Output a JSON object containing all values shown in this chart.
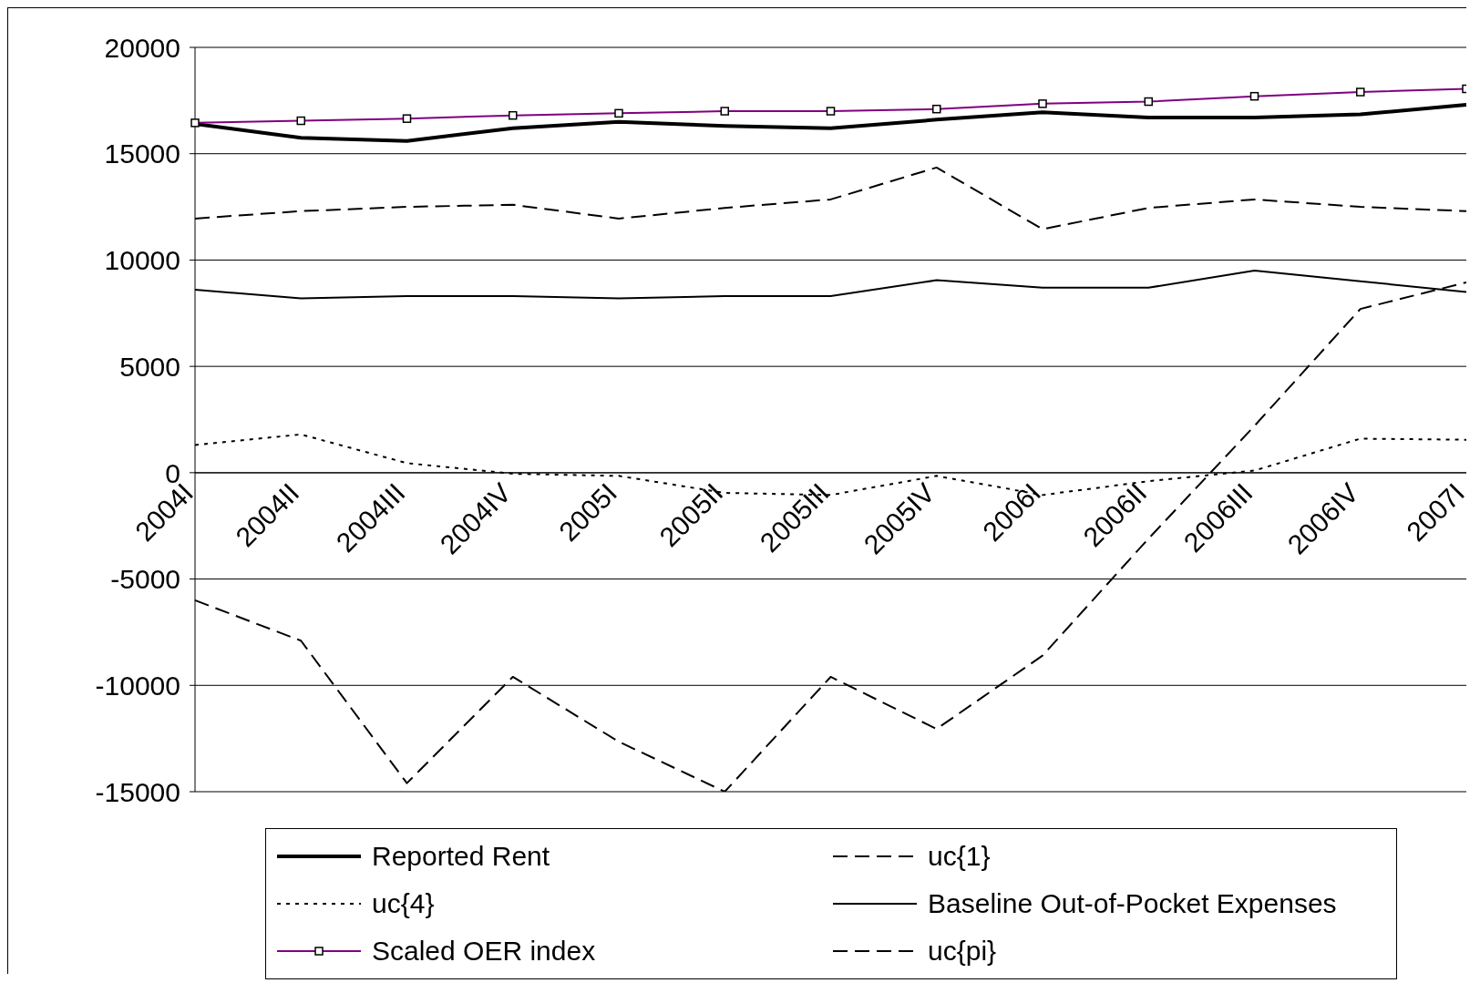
{
  "chart_data": {
    "type": "line",
    "categories": [
      "2004I",
      "2004II",
      "2004III",
      "2004IV",
      "2005I",
      "2005II",
      "2005III",
      "2005IV",
      "2006I",
      "2006II",
      "2006III",
      "2006IV",
      "2007I"
    ],
    "series": [
      {
        "name": "Reported Rent",
        "color": "#000000",
        "line_style": "solid",
        "marker": "none",
        "values": [
          16400,
          15750,
          15600,
          16200,
          16500,
          16300,
          16200,
          16600,
          16950,
          16700,
          16700,
          16850,
          17300
        ]
      },
      {
        "name": "uc{1}",
        "color": "#000000",
        "line_style": "dashed",
        "marker": "none",
        "values": [
          -6000,
          -7900,
          -14600,
          -9600,
          -12650,
          -15000,
          -9600,
          -12050,
          -8600,
          -3100,
          2200,
          7700,
          8950
        ]
      },
      {
        "name": "uc{4}",
        "color": "#000000",
        "line_style": "dotted",
        "marker": "none",
        "values": [
          1300,
          1800,
          450,
          -50,
          -150,
          -950,
          -1050,
          -150,
          -1050,
          -400,
          100,
          1600,
          1550
        ]
      },
      {
        "name": "Baseline Out-of-Pocket Expenses",
        "color": "#000000",
        "line_style": "solid",
        "marker": "none",
        "values": [
          8600,
          8200,
          8300,
          8300,
          8200,
          8300,
          8300,
          9050,
          8700,
          8700,
          9500,
          9000,
          8500
        ]
      },
      {
        "name": "Scaled OER index",
        "color": "#800080",
        "line_style": "solid",
        "marker": "square",
        "values": [
          16450,
          16550,
          16650,
          16800,
          16900,
          17000,
          17000,
          17100,
          17350,
          17450,
          17700,
          17900,
          18050
        ]
      },
      {
        "name": "uc{pi}",
        "color": "#000000",
        "line_style": "dashed",
        "marker": "none",
        "values": [
          11950,
          12300,
          12500,
          12600,
          11950,
          12450,
          12850,
          14350,
          11450,
          12450,
          12850,
          12500,
          12300
        ]
      }
    ],
    "ylim": [
      -15000,
      20000
    ],
    "yticks": [
      -15000,
      -10000,
      -5000,
      0,
      5000,
      10000,
      15000,
      20000
    ],
    "grid": "y",
    "legend": "bottom"
  }
}
